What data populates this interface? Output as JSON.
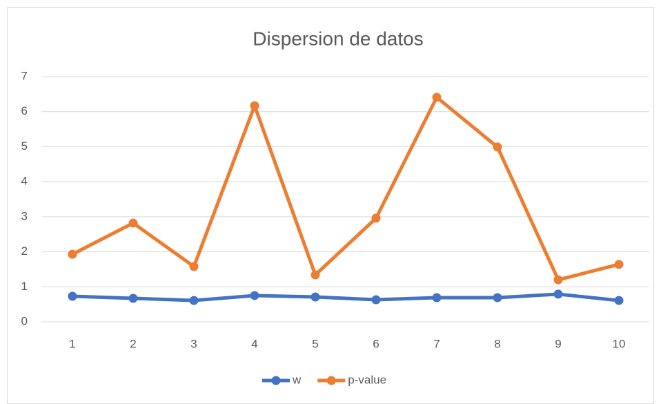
{
  "chart_data": {
    "type": "line",
    "title": "Dispersion de datos",
    "categories": [
      "1",
      "2",
      "3",
      "4",
      "5",
      "6",
      "7",
      "8",
      "9",
      "10"
    ],
    "series": [
      {
        "name": "w",
        "color": "#4472c4",
        "values": [
          0.73,
          0.67,
          0.61,
          0.75,
          0.71,
          0.63,
          0.69,
          0.69,
          0.79,
          0.61
        ]
      },
      {
        "name": "p-value",
        "color": "#ed7d31",
        "values": [
          1.93,
          2.82,
          1.58,
          6.17,
          1.34,
          2.96,
          6.41,
          4.99,
          1.2,
          1.64
        ]
      }
    ],
    "ylim": [
      0,
      7
    ],
    "yticks": [
      0,
      1,
      2,
      3,
      4,
      5,
      6,
      7
    ],
    "grid": true,
    "legend": "bottom"
  }
}
